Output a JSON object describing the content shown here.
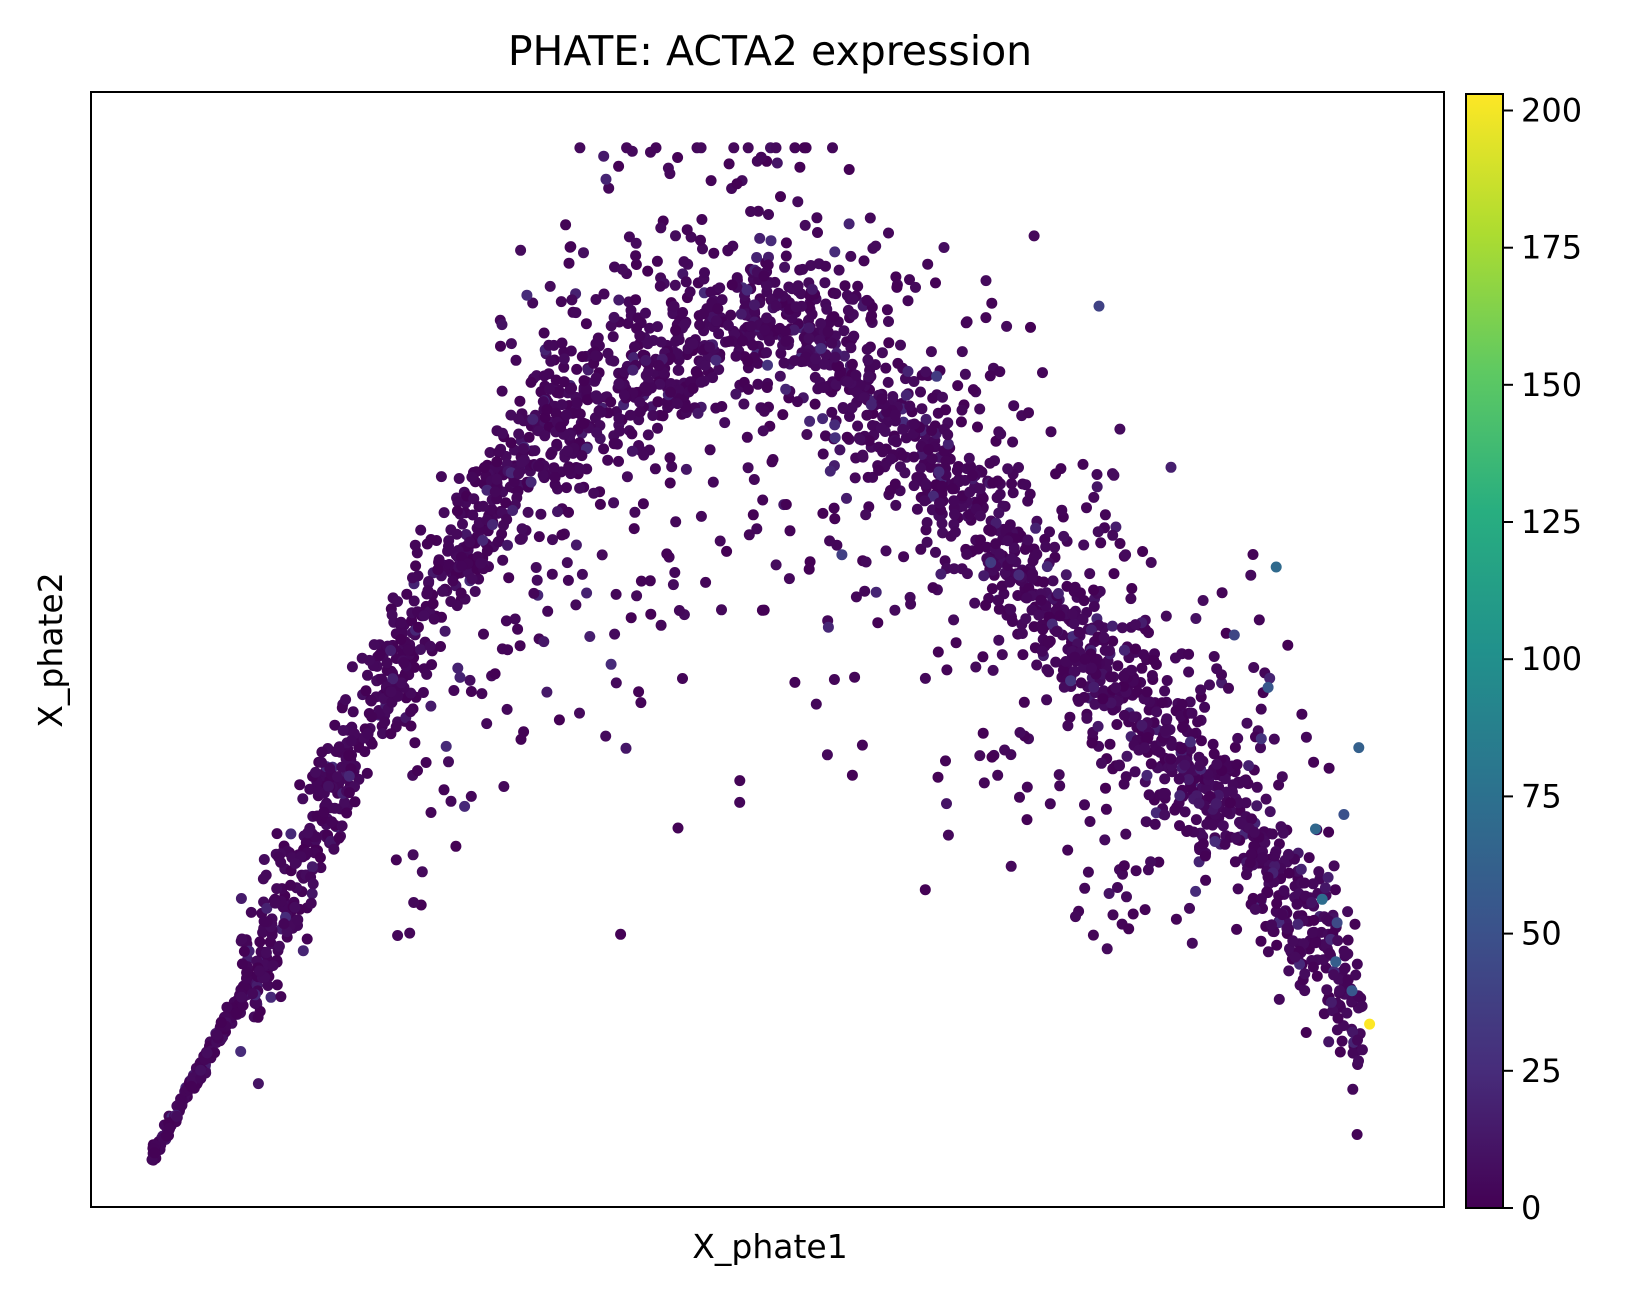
{
  "chart_data": {
    "type": "scatter",
    "title": "PHATE: ACTA2 expression",
    "xlabel": "X_phate1",
    "ylabel": "X_phate2",
    "x_ticks": [],
    "y_ticks": [],
    "xlim": [
      0,
      100
    ],
    "ylim": [
      0,
      100
    ],
    "colorbar": {
      "label": "",
      "colormap": "viridis",
      "range": [
        0,
        203
      ],
      "ticks": [
        0,
        25,
        50,
        75,
        100,
        125,
        150,
        175,
        200
      ],
      "tick_labels": [
        "0",
        "25",
        "50",
        "75",
        "100",
        "125",
        "150",
        "175",
        "200"
      ]
    },
    "point_count_approx": 3000,
    "structure": "arch-shaped manifold rising from lower-left, peaking near top-center, descending to lower-right; most cells near 0 expression",
    "highlighted_points": [
      {
        "x": 94.5,
        "y": 16.4,
        "value": 203
      },
      {
        "x": 93.2,
        "y": 19.4,
        "value": 55
      },
      {
        "x": 92.0,
        "y": 22.0,
        "value": 60
      },
      {
        "x": 93.7,
        "y": 41.2,
        "value": 62
      },
      {
        "x": 92.6,
        "y": 35.2,
        "value": 50
      },
      {
        "x": 87.6,
        "y": 57.4,
        "value": 70
      },
      {
        "x": 87.0,
        "y": 46.6,
        "value": 55
      },
      {
        "x": 91.0,
        "y": 27.6,
        "value": 72
      },
      {
        "x": 90.5,
        "y": 33.9,
        "value": 68
      },
      {
        "x": 92.1,
        "y": 25.5,
        "value": 45
      },
      {
        "x": 84.5,
        "y": 51.3,
        "value": 42
      },
      {
        "x": 74.5,
        "y": 80.8,
        "value": 40
      },
      {
        "x": 55.5,
        "y": 58.5,
        "value": 38
      },
      {
        "x": 66.5,
        "y": 57.8,
        "value": 35
      },
      {
        "x": 62.5,
        "y": 74.5,
        "value": 35
      },
      {
        "x": 50.0,
        "y": 75.5,
        "value": 30
      },
      {
        "x": 55.0,
        "y": 69.0,
        "value": 28
      },
      {
        "x": 72.4,
        "y": 47.2,
        "value": 30
      },
      {
        "x": 86.5,
        "y": 42.0,
        "value": 30
      },
      {
        "x": 54.5,
        "y": 52.0,
        "value": 22
      }
    ]
  }
}
